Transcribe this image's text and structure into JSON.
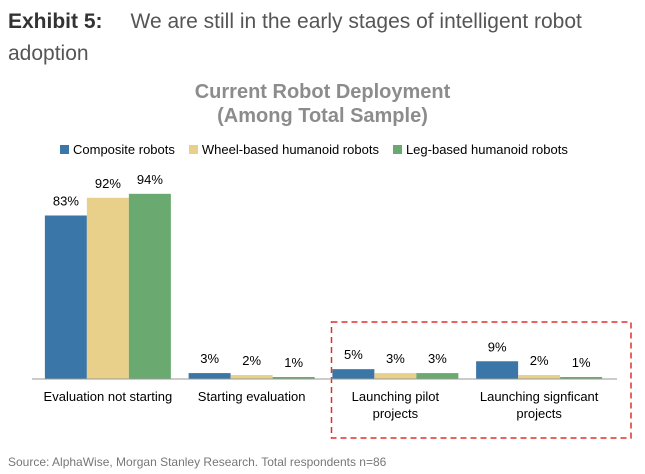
{
  "exhibit": {
    "label": "Exhibit 5:",
    "title": "We are still in the early stages of intelligent robot adoption"
  },
  "chart_data": {
    "type": "bar",
    "title_line1": "Current Robot Deployment",
    "title_line2": "(Among Total Sample)",
    "categories": [
      [
        "Evaluation not starting"
      ],
      [
        "Starting evaluation"
      ],
      [
        "Launching pilot",
        "projects"
      ],
      [
        "Launching signficant",
        "projects"
      ]
    ],
    "series": [
      {
        "name": "Composite robots",
        "color": "#3a76a8",
        "values": [
          83,
          3,
          5,
          9
        ],
        "labels": [
          "83%",
          "3%",
          "5%",
          "9%"
        ]
      },
      {
        "name": "Wheel-based humanoid robots",
        "color": "#e8cf8a",
        "values": [
          92,
          2,
          3,
          2
        ],
        "labels": [
          "92%",
          "2%",
          "3%",
          "2%"
        ]
      },
      {
        "name": "Leg-based humanoid robots",
        "color": "#6aaa70",
        "values": [
          94,
          1,
          3,
          1
        ],
        "labels": [
          "94%",
          "1%",
          "3%",
          "1%"
        ]
      }
    ],
    "ylim": [
      0,
      100
    ],
    "legend_position": "top",
    "highlight": {
      "categories": [
        2,
        3
      ],
      "color": "#e0302a",
      "style": "dashed"
    }
  },
  "source": "Source: AlphaWise, Morgan Stanley Research. Total respondents n=86"
}
